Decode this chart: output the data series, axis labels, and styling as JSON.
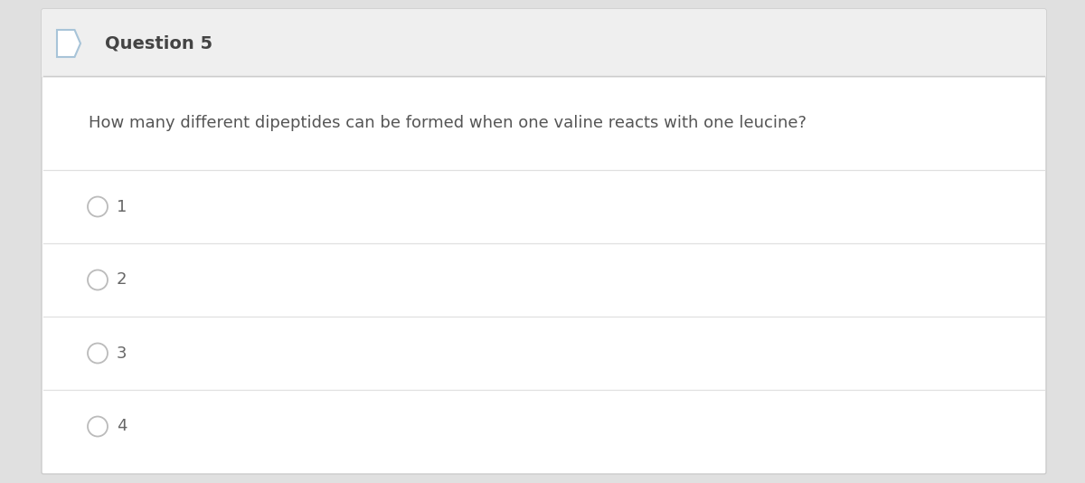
{
  "title": "Question 5",
  "question": "How many different dipeptides can be formed when one valine reacts with one leucine?",
  "options": [
    "1",
    "2",
    "3",
    "4"
  ],
  "bg_color": "#ffffff",
  "header_bg_color": "#efefef",
  "outer_bg_color": "#e0e0e0",
  "border_color": "#cccccc",
  "title_color": "#444444",
  "question_color": "#555555",
  "option_color": "#666666",
  "circle_color": "#bbbbbb",
  "icon_border_color": "#a8c4d8",
  "divider_color": "#e0e0e0",
  "title_fontsize": 14,
  "question_fontsize": 13,
  "option_fontsize": 13
}
